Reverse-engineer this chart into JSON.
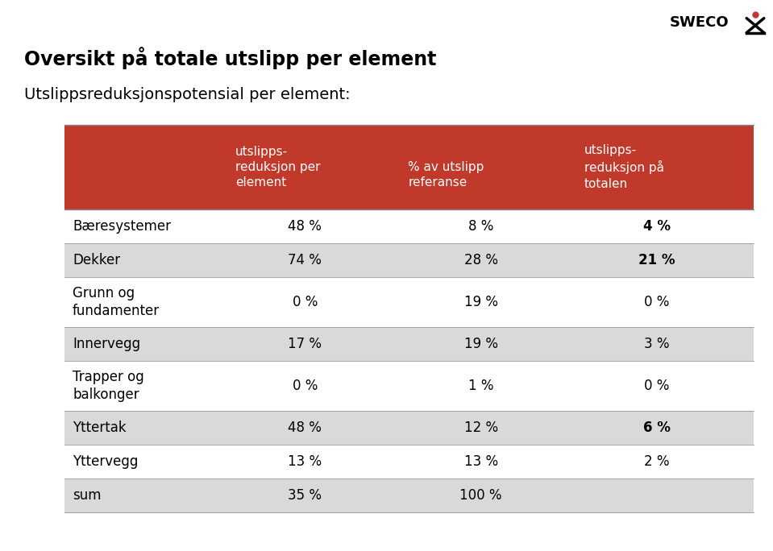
{
  "title": "Oversikt på totale utslipp per element",
  "subtitle": "Utslippsreduksjonspotensial per element:",
  "header_bg_color": "#C0392B",
  "header_text_color": "#FFFFFF",
  "col_headers_line1": [
    "utslipps-",
    "",
    "utslipps-"
  ],
  "col_headers_line2": [
    "reduksjon per",
    "% av utslipp",
    "reduksjon på"
  ],
  "col_headers_line3": [
    "element",
    "referanse",
    "totalen"
  ],
  "rows": [
    {
      "label": "Bæresystemer",
      "values": [
        "48 %",
        "8 %",
        "4 %"
      ],
      "bold_last": true,
      "bg": "#FFFFFF"
    },
    {
      "label": "Dekker",
      "values": [
        "74 %",
        "28 %",
        "21 %"
      ],
      "bold_last": true,
      "bg": "#D9D9D9"
    },
    {
      "label": "Grunn og\nfundamenter",
      "values": [
        "0 %",
        "19 %",
        "0 %"
      ],
      "bold_last": false,
      "bg": "#FFFFFF"
    },
    {
      "label": "Innervegg",
      "values": [
        "17 %",
        "19 %",
        "3 %"
      ],
      "bold_last": false,
      "bg": "#D9D9D9"
    },
    {
      "label": "Trapper og\nbalkonger",
      "values": [
        "0 %",
        "1 %",
        "0 %"
      ],
      "bold_last": false,
      "bg": "#FFFFFF"
    },
    {
      "label": "Yttertak",
      "values": [
        "48 %",
        "12 %",
        "6 %"
      ],
      "bold_last": true,
      "bg": "#D9D9D9"
    },
    {
      "label": "Yttervegg",
      "values": [
        "13 %",
        "13 %",
        "2 %"
      ],
      "bold_last": false,
      "bg": "#FFFFFF"
    },
    {
      "label": "sum",
      "values": [
        "35 %",
        "100 %",
        ""
      ],
      "bold_last": false,
      "bg": "#D9D9D9"
    }
  ],
  "bg_color": "#FFFFFF",
  "title_fontsize": 17,
  "subtitle_fontsize": 14,
  "table_fontsize": 12,
  "header_fontsize": 11,
  "sweco_text_color": "#000000"
}
